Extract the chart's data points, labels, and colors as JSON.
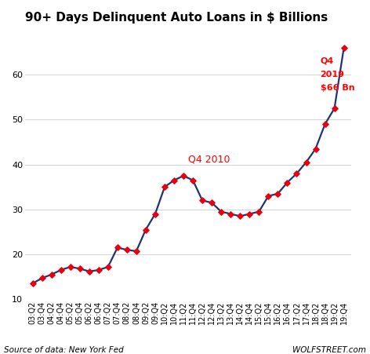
{
  "title": "90+ Days Delinquent Auto Loans in $ Billions",
  "source_text": "Source of data: New York Fed",
  "watermark": "WOLFSTREET.com",
  "annotation_q4_2010": "Q4 2010",
  "annotation_q4_2019_line1": "Q4",
  "annotation_q4_2019_line2": "2019",
  "annotation_q4_2019_line3": "$66 Bn",
  "line_color": "#1f3474",
  "marker_color": "#e8000d",
  "ylim": [
    10,
    70
  ],
  "yticks": [
    10,
    20,
    30,
    40,
    50,
    60
  ],
  "labels": [
    "03:Q2",
    "03:Q4",
    "04:Q2",
    "04:Q4",
    "05:Q2",
    "05:Q4",
    "06:Q2",
    "06:Q4",
    "07:Q2",
    "07:Q4",
    "08:Q2",
    "08:Q4",
    "09:Q2",
    "09:Q4",
    "10:Q2",
    "10:Q4",
    "11:Q2",
    "11:Q4",
    "12:Q2",
    "12:Q4",
    "13:Q2",
    "13:Q4",
    "14:Q2",
    "14:Q4",
    "15:Q2",
    "15:Q4",
    "16:Q2",
    "16:Q4",
    "17:Q2",
    "17:Q4",
    "18:Q2",
    "18:Q4",
    "19:Q2",
    "19:Q4"
  ],
  "values": [
    13.5,
    14.7,
    15.5,
    16.5,
    17.2,
    16.8,
    16.2,
    16.5,
    17.2,
    21.5,
    21.0,
    20.7,
    25.5,
    29.0,
    35.0,
    36.5,
    37.5,
    36.5,
    32.0,
    31.5,
    29.5,
    29.0,
    28.5,
    29.0,
    29.5,
    33.0,
    33.5,
    36.0,
    38.0,
    40.5,
    43.5,
    49.0,
    52.5,
    66.0
  ],
  "grid_color": "#cccccc",
  "title_fontsize": 11,
  "tick_fontsize": 7,
  "source_fontsize": 7.5,
  "watermark_fontsize": 7.5,
  "annotation_fontsize_main": 9,
  "annotation_fontsize_label": 8
}
